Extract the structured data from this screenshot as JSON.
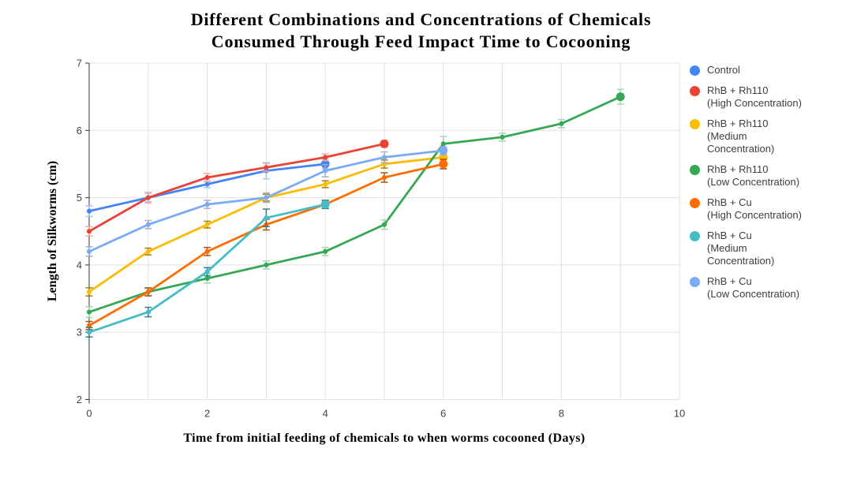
{
  "chart_title": {
    "line1": "Different Combinations and Concentrations of Chemicals",
    "line2": "Consumed Through Feed Impact Time to Cocooning"
  },
  "chart_data": {
    "type": "line",
    "title": "Different Combinations and Concentrations of Chemicals Consumed Through Feed Impact Time to Cocooning",
    "xlabel": "Time from initial feeding of chemicals to when worms cocooned (Days)",
    "ylabel": "Length of Silkworms (cm)",
    "xlim": [
      0,
      10
    ],
    "ylim": [
      2,
      7
    ],
    "x_tick_labels": [
      0,
      2,
      4,
      6,
      8,
      10
    ],
    "x_gridline_step": 1,
    "y_ticks": [
      2,
      3,
      4,
      5,
      6,
      7
    ],
    "grid": true,
    "legend_position": "right",
    "error_bars": true,
    "marker": "point",
    "end_marker": "large-circle",
    "colors": {
      "background": "#ffffff",
      "grid": "#e0e0e0",
      "axis": "#333333",
      "tick_text": "#424242",
      "legend_text": "#3c4043"
    },
    "series": [
      {
        "name": "Control",
        "legend_lines": [
          "Control"
        ],
        "color": "#4285F4",
        "error_color": "#A3C2F9",
        "x": [
          0,
          1,
          2,
          3,
          4
        ],
        "y": [
          4.8,
          5.0,
          5.2,
          5.4,
          5.5
        ],
        "err": [
          0.08,
          0.06,
          0.05,
          0.12,
          0.07
        ]
      },
      {
        "name": "RhB + Rh110 (High Concentration)",
        "legend_lines": [
          "RhB + Rh110",
          "(High Concentration)"
        ],
        "color": "#EA4335",
        "error_color": "#F5A79F",
        "x": [
          0,
          1,
          2,
          3,
          4,
          5
        ],
        "y": [
          4.5,
          5.0,
          5.3,
          5.45,
          5.6,
          5.8
        ],
        "err": [
          0.07,
          0.08,
          0.06,
          0.06,
          0.05,
          0.05
        ]
      },
      {
        "name": "RhB + Rh110 (Medium Concentration)",
        "legend_lines": [
          "RhB + Rh110",
          "(Medium",
          "Concentration)"
        ],
        "color": "#FBBC04",
        "error_color": "#9C7A06",
        "x": [
          0,
          1,
          2,
          3,
          4,
          5,
          6
        ],
        "y": [
          3.6,
          4.2,
          4.6,
          5.0,
          5.2,
          5.5,
          5.6
        ],
        "err": [
          0.06,
          0.05,
          0.05,
          0.05,
          0.05,
          0.06,
          0.07
        ]
      },
      {
        "name": "RhB + Rh110 (Low Concentration)",
        "legend_lines": [
          "RhB + Rh110",
          "(Low Concentration)"
        ],
        "color": "#34A853",
        "error_color": "#9CD6AC",
        "x": [
          0,
          1,
          2,
          3,
          4,
          5,
          6,
          7,
          8,
          9
        ],
        "y": [
          3.3,
          3.6,
          3.8,
          4.0,
          4.2,
          4.6,
          5.8,
          5.9,
          6.1,
          6.5
        ],
        "err": [
          0.08,
          0.05,
          0.07,
          0.06,
          0.06,
          0.07,
          0.11,
          0.06,
          0.06,
          0.11
        ]
      },
      {
        "name": "RhB + Cu (High Concentration)",
        "legend_lines": [
          "RhB + Cu",
          "(High Concentration)"
        ],
        "color": "#FF6D01",
        "error_color": "#9F4D0D",
        "x": [
          0,
          1,
          2,
          3,
          4,
          5,
          6
        ],
        "y": [
          3.1,
          3.6,
          4.2,
          4.6,
          4.9,
          5.3,
          5.5
        ],
        "err": [
          0.06,
          0.06,
          0.06,
          0.08,
          0.06,
          0.07,
          0.07
        ]
      },
      {
        "name": "RhB + Cu (Medium Concentration)",
        "legend_lines": [
          "RhB + Cu",
          "(Medium",
          "Concentration)"
        ],
        "color": "#46BDC6",
        "error_color": "#2A7A82",
        "x": [
          0,
          1,
          2,
          3,
          4
        ],
        "y": [
          3.0,
          3.3,
          3.9,
          4.7,
          4.9
        ],
        "err": [
          0.07,
          0.07,
          0.06,
          0.13,
          0.06
        ]
      },
      {
        "name": "RhB + Cu (Low Concentration)",
        "legend_lines": [
          "RhB + Cu",
          "(Low Concentration)"
        ],
        "color": "#7BAAF7",
        "error_color": "#9FAEC4",
        "x": [
          0,
          1,
          2,
          3,
          4,
          5,
          6
        ],
        "y": [
          4.2,
          4.6,
          4.9,
          5.0,
          5.4,
          5.6,
          5.7
        ],
        "err": [
          0.07,
          0.06,
          0.06,
          0.07,
          0.09,
          0.08,
          0.06
        ]
      }
    ]
  }
}
